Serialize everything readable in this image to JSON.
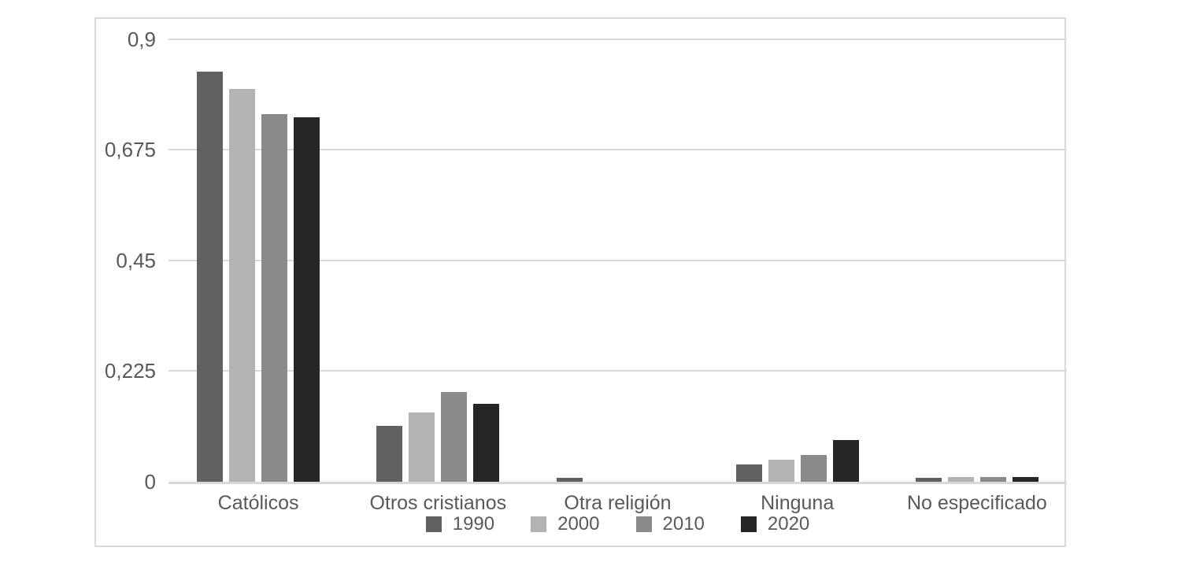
{
  "chart_data": {
    "type": "bar",
    "title": "",
    "xlabel": "",
    "ylabel": "",
    "categories": [
      "Católicos",
      "Otros cristianos",
      "Otra religión",
      "Ninguna",
      "No especificado"
    ],
    "series": [
      {
        "name": "1990",
        "color": "#616161",
        "values": [
          0.834,
          0.113,
          0.008,
          0.035,
          0.008
        ]
      },
      {
        "name": "2000",
        "color": "#b3b3b3",
        "values": [
          0.799,
          0.141,
          0.0,
          0.044,
          0.009
        ]
      },
      {
        "name": "2010",
        "color": "#8a8a8a",
        "values": [
          0.747,
          0.183,
          0.0,
          0.054,
          0.01
        ]
      },
      {
        "name": "2020",
        "color": "#262626",
        "values": [
          0.741,
          0.159,
          0.0,
          0.084,
          0.009
        ]
      }
    ],
    "y_axis": {
      "min": 0,
      "max": 0.9,
      "decimal_separator": ",",
      "ticks": [
        {
          "value": 0,
          "label": "0"
        },
        {
          "value": 0.225,
          "label": "0,225"
        },
        {
          "value": 0.45,
          "label": "0,45"
        },
        {
          "value": 0.675,
          "label": "0,675"
        },
        {
          "value": 0.9,
          "label": "0,9"
        }
      ]
    },
    "legend": {
      "position": "bottom",
      "entries": [
        "1990",
        "2000",
        "2010",
        "2020"
      ]
    },
    "grid": true
  },
  "colors": {
    "gridline": "#d9d9d9",
    "axis_line": "#d9d9d9",
    "chart_border": "#d9d9d9",
    "text": "#595959",
    "background": "#ffffff"
  }
}
